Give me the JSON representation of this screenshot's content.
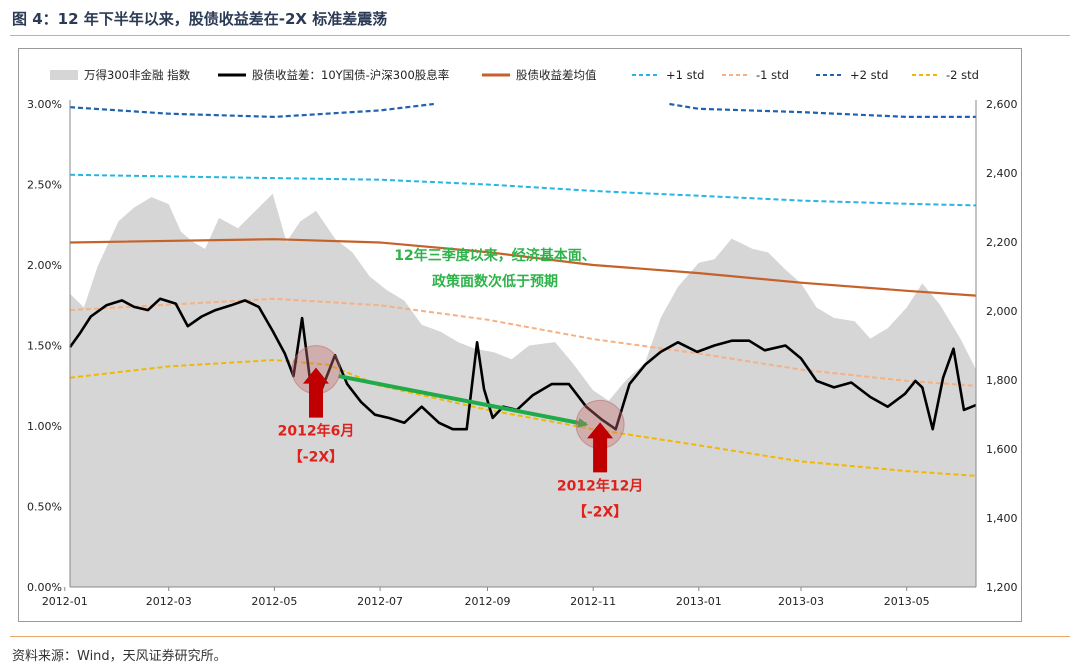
{
  "header": {
    "title": "图 4：12 年下半年以来，股债收益差在-2X 标准差震荡"
  },
  "footer": {
    "source": "资料来源：Wind，天风证券研究所。"
  },
  "colors": {
    "area": "#d6d6d6",
    "spread": "#000000",
    "mean": "#c5622a",
    "plus1": "#27b4e6",
    "minus1": "#f5b183",
    "plus2": "#1f62ad",
    "minus2": "#f2b705",
    "green": "#1fab4a",
    "red": "#c00000"
  },
  "chart_data": {
    "type": "line",
    "x_ticks": [
      "2012-01",
      "2012-03",
      "2012-05",
      "2012-07",
      "2012-09",
      "2012-11",
      "2013-01",
      "2013-03",
      "2013-05"
    ],
    "x_range": [
      "2012-01-04",
      "2013-06-10"
    ],
    "y_left": {
      "min": 0,
      "max": 0.03,
      "ticks": [
        "0.00%",
        "0.50%",
        "1.00%",
        "1.50%",
        "2.00%",
        "2.50%",
        "3.00%"
      ]
    },
    "y_right": {
      "min": 1200,
      "max": 2600,
      "ticks": [
        "1,200",
        "1,400",
        "1,600",
        "1,800",
        "2,000",
        "2,200",
        "2,400",
        "2,600"
      ]
    },
    "legend": [
      {
        "name": "万得300非金融 指数",
        "style": "area",
        "color": "#d6d6d6"
      },
      {
        "name": "股债收益差：10Y国债-沪深300股息率",
        "style": "solid",
        "color": "#000000"
      },
      {
        "name": "股债收益差均值",
        "style": "solid",
        "color": "#c5622a"
      },
      {
        "name": "+1 std",
        "style": "dashed",
        "color": "#27b4e6"
      },
      {
        "name": "-1 std",
        "style": "dashed",
        "color": "#f5b183"
      },
      {
        "name": "+2 std",
        "style": "dashed",
        "color": "#1f62ad"
      },
      {
        "name": "-2 std",
        "style": "dashed",
        "color": "#f2b705"
      }
    ],
    "series": [
      {
        "name": "万得300非金融 指数",
        "axis": "right",
        "x": [
          "2012-01-04",
          "2012-01-12",
          "2012-01-20",
          "2012-02-01",
          "2012-02-10",
          "2012-02-20",
          "2012-03-01",
          "2012-03-08",
          "2012-03-15",
          "2012-03-22",
          "2012-03-30",
          "2012-04-10",
          "2012-04-20",
          "2012-04-30",
          "2012-05-08",
          "2012-05-16",
          "2012-05-25",
          "2012-06-05",
          "2012-06-15",
          "2012-06-25",
          "2012-07-05",
          "2012-07-15",
          "2012-07-25",
          "2012-08-05",
          "2012-08-15",
          "2012-08-25",
          "2012-09-05",
          "2012-09-15",
          "2012-09-25",
          "2012-10-10",
          "2012-10-20",
          "2012-11-01",
          "2012-11-10",
          "2012-11-20",
          "2012-12-01",
          "2012-12-10",
          "2012-12-20",
          "2013-01-01",
          "2013-01-10",
          "2013-01-20",
          "2013-02-01",
          "2013-02-10",
          "2013-02-20",
          "2013-03-01",
          "2013-03-10",
          "2013-03-20",
          "2013-04-01",
          "2013-04-10",
          "2013-04-20",
          "2013-05-01",
          "2013-05-10",
          "2013-05-20",
          "2013-06-01",
          "2013-06-10"
        ],
        "y": [
          2050,
          2010,
          2130,
          2260,
          2300,
          2330,
          2310,
          2230,
          2200,
          2180,
          2270,
          2240,
          2290,
          2340,
          2200,
          2260,
          2290,
          2210,
          2170,
          2100,
          2060,
          2030,
          1960,
          1940,
          1910,
          1890,
          1880,
          1860,
          1900,
          1910,
          1850,
          1770,
          1740,
          1800,
          1850,
          1980,
          2070,
          2140,
          2150,
          2210,
          2180,
          2170,
          2120,
          2080,
          2010,
          1980,
          1970,
          1920,
          1950,
          2010,
          2080,
          2020,
          1920,
          1830
        ]
      },
      {
        "name": "股债收益差：10Y国债-沪深300股息率",
        "axis": "left",
        "x": [
          "2012-01-04",
          "2012-01-10",
          "2012-01-16",
          "2012-01-25",
          "2012-02-03",
          "2012-02-10",
          "2012-02-18",
          "2012-02-25",
          "2012-03-05",
          "2012-03-12",
          "2012-03-20",
          "2012-03-28",
          "2012-04-06",
          "2012-04-14",
          "2012-04-22",
          "2012-04-30",
          "2012-05-07",
          "2012-05-12",
          "2012-05-17",
          "2012-05-22",
          "2012-05-28",
          "2012-06-05",
          "2012-06-12",
          "2012-06-20",
          "2012-06-28",
          "2012-07-06",
          "2012-07-15",
          "2012-07-25",
          "2012-08-04",
          "2012-08-12",
          "2012-08-20",
          "2012-08-26",
          "2012-08-30",
          "2012-09-04",
          "2012-09-10",
          "2012-09-18",
          "2012-09-27",
          "2012-10-08",
          "2012-10-18",
          "2012-10-28",
          "2012-11-06",
          "2012-11-14",
          "2012-11-22",
          "2012-12-01",
          "2012-12-10",
          "2012-12-20",
          "2012-12-31",
          "2013-01-10",
          "2013-01-20",
          "2013-01-30",
          "2013-02-08",
          "2013-02-20",
          "2013-03-01",
          "2013-03-10",
          "2013-03-20",
          "2013-03-30",
          "2013-04-10",
          "2013-04-20",
          "2013-04-30",
          "2013-05-06",
          "2013-05-10",
          "2013-05-16",
          "2013-05-22",
          "2013-05-28",
          "2013-06-03",
          "2013-06-10"
        ],
        "y": [
          0.0149,
          0.0158,
          0.0168,
          0.0175,
          0.0178,
          0.0174,
          0.0172,
          0.0179,
          0.0176,
          0.0162,
          0.0168,
          0.0172,
          0.0175,
          0.0178,
          0.0174,
          0.0159,
          0.0145,
          0.0131,
          0.0167,
          0.0125,
          0.0122,
          0.0144,
          0.0126,
          0.0115,
          0.0107,
          0.0105,
          0.0102,
          0.0112,
          0.0102,
          0.0098,
          0.0098,
          0.0152,
          0.0123,
          0.0105,
          0.0112,
          0.011,
          0.0119,
          0.0126,
          0.0126,
          0.0112,
          0.0104,
          0.0098,
          0.0126,
          0.0138,
          0.0146,
          0.0152,
          0.0146,
          0.015,
          0.0153,
          0.0153,
          0.0147,
          0.015,
          0.0142,
          0.0128,
          0.0124,
          0.0127,
          0.0118,
          0.0112,
          0.012,
          0.0128,
          0.0124,
          0.0098,
          0.013,
          0.0148,
          0.011,
          0.0113
        ]
      },
      {
        "name": "股债收益差均值",
        "axis": "left",
        "x": [
          "2012-01-04",
          "2012-05-01",
          "2012-07-01",
          "2012-09-01",
          "2012-11-01",
          "2013-01-01",
          "2013-03-01",
          "2013-05-01",
          "2013-06-10"
        ],
        "y": [
          0.0214,
          0.0216,
          0.0214,
          0.0208,
          0.02,
          0.0195,
          0.0189,
          0.0184,
          0.0181
        ]
      },
      {
        "name": "+1 std",
        "axis": "left",
        "x": [
          "2012-01-04",
          "2012-05-01",
          "2012-07-01",
          "2012-09-01",
          "2012-11-01",
          "2013-01-01",
          "2013-03-01",
          "2013-05-01",
          "2013-06-10"
        ],
        "y": [
          0.0256,
          0.0254,
          0.0253,
          0.025,
          0.0246,
          0.0243,
          0.024,
          0.0238,
          0.0237
        ]
      },
      {
        "name": "-1 std",
        "axis": "left",
        "x": [
          "2012-01-04",
          "2012-05-01",
          "2012-07-01",
          "2012-09-01",
          "2012-11-01",
          "2013-01-01",
          "2013-03-01",
          "2013-05-01",
          "2013-06-10"
        ],
        "y": [
          0.0172,
          0.0179,
          0.0175,
          0.0166,
          0.0154,
          0.0145,
          0.0135,
          0.0128,
          0.0125
        ]
      },
      {
        "name": "+2 std",
        "axis": "left",
        "segments": [
          {
            "x": [
              "2012-01-04",
              "2012-03-01",
              "2012-05-01",
              "2012-07-01",
              "2012-08-01"
            ],
            "y": [
              0.0298,
              0.0294,
              0.0292,
              0.0296,
              0.03
            ]
          },
          {
            "x": [
              "2012-12-15",
              "2013-01-01",
              "2013-03-01",
              "2013-05-01",
              "2013-06-10"
            ],
            "y": [
              0.03,
              0.0297,
              0.0295,
              0.0292,
              0.0292
            ]
          }
        ]
      },
      {
        "name": "-2 std",
        "axis": "left",
        "x": [
          "2012-01-04",
          "2012-03-01",
          "2012-05-01",
          "2012-06-01",
          "2012-07-01",
          "2012-09-01",
          "2012-11-01",
          "2013-01-01",
          "2013-03-01",
          "2013-05-01",
          "2013-06-10"
        ],
        "y": [
          0.013,
          0.0137,
          0.0141,
          0.0138,
          0.0125,
          0.011,
          0.0098,
          0.0088,
          0.0078,
          0.0072,
          0.0069
        ]
      }
    ],
    "annotations": {
      "green_text": [
        "12年三季度以来，经济基本面、",
        "政策面数次低于预期"
      ],
      "arrow": {
        "from": [
          "2012-06-07",
          0.0131
        ],
        "to": [
          "2012-10-28",
          0.0101
        ]
      },
      "marks": [
        {
          "at": [
            "2012-05-25",
            0.0135
          ],
          "label": [
            "2012年6月",
            "【-2X】"
          ]
        },
        {
          "at": [
            "2012-11-05",
            0.0101
          ],
          "label": [
            "2012年12月",
            "【-2X】"
          ]
        }
      ]
    }
  }
}
